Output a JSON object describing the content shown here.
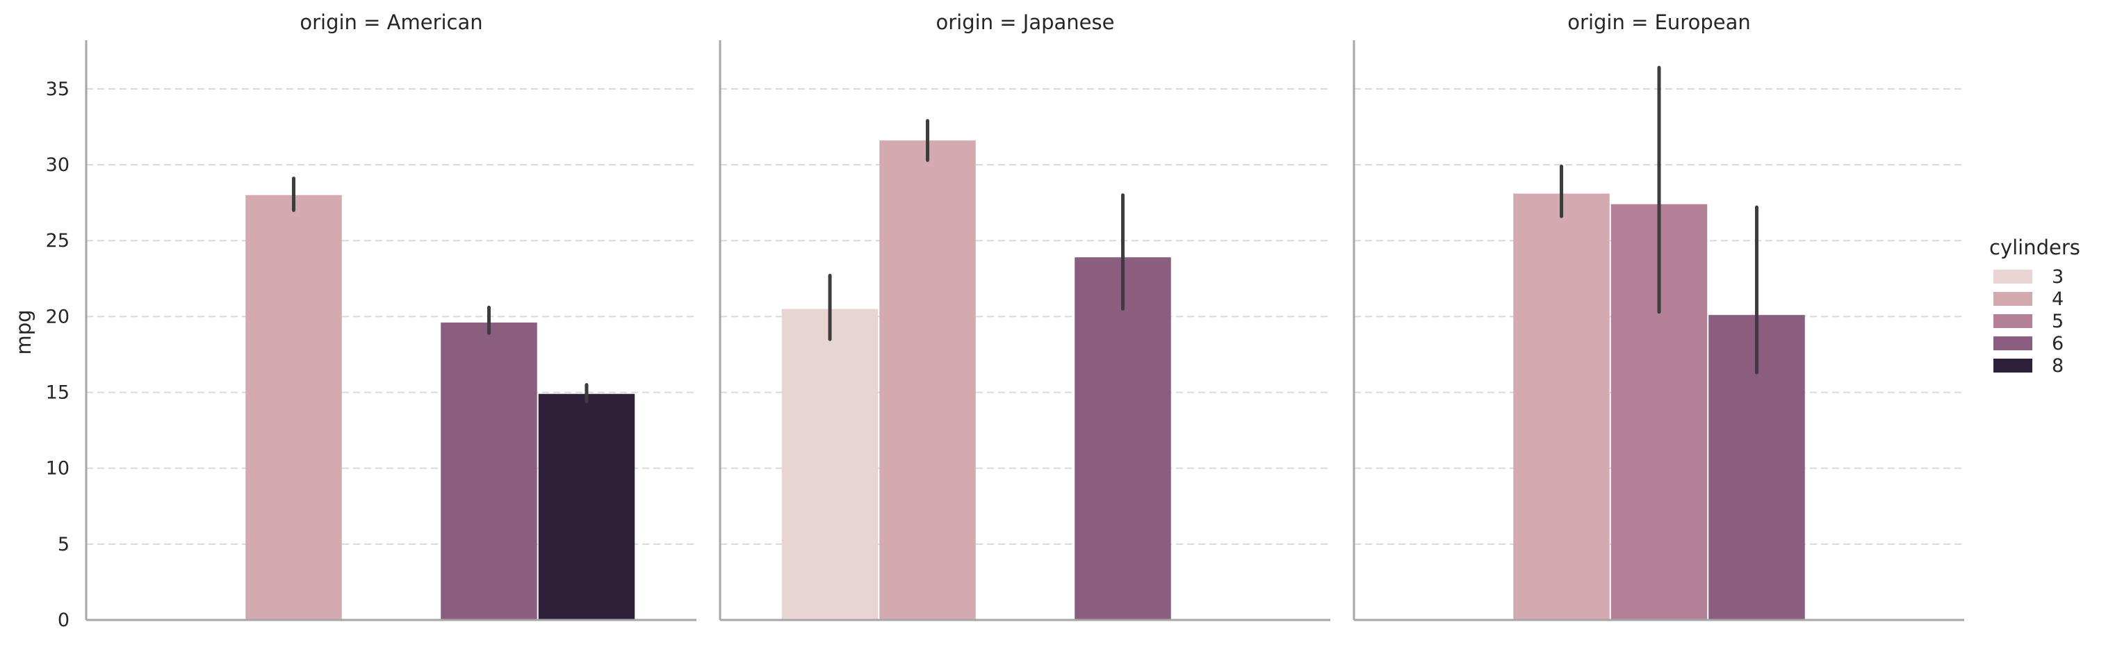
{
  "chart_data": {
    "type": "bar",
    "ylabel": "mpg",
    "ylim": [
      0,
      38.2
    ],
    "yticks": [
      0,
      5,
      10,
      15,
      20,
      25,
      30,
      35
    ],
    "grid": "y-dashed",
    "hue_label": "cylinders",
    "hue_levels": [
      "3",
      "4",
      "5",
      "6",
      "8"
    ],
    "colors": [
      "#e8d5d1",
      "#d4a9b0",
      "#b48097",
      "#8b5e80",
      "#2f2039"
    ],
    "error_bar_color": "#3d3d3d",
    "legend_position": "right",
    "panels": [
      {
        "title": "origin = American",
        "bars": [
          {
            "cylinders": "4",
            "mean": 28.0,
            "ci": [
              27.0,
              29.1
            ]
          },
          {
            "cylinders": "6",
            "mean": 19.6,
            "ci": [
              18.9,
              20.6
            ]
          },
          {
            "cylinders": "8",
            "mean": 14.9,
            "ci": [
              14.4,
              15.5
            ]
          }
        ]
      },
      {
        "title": "origin = Japanese",
        "bars": [
          {
            "cylinders": "3",
            "mean": 20.5,
            "ci": [
              18.5,
              22.7
            ]
          },
          {
            "cylinders": "4",
            "mean": 31.6,
            "ci": [
              30.3,
              32.9
            ]
          },
          {
            "cylinders": "6",
            "mean": 23.9,
            "ci": [
              20.5,
              28.0
            ]
          }
        ]
      },
      {
        "title": "origin = European",
        "bars": [
          {
            "cylinders": "4",
            "mean": 28.1,
            "ci": [
              26.6,
              29.9
            ]
          },
          {
            "cylinders": "5",
            "mean": 27.4,
            "ci": [
              20.3,
              36.4
            ]
          },
          {
            "cylinders": "6",
            "mean": 20.1,
            "ci": [
              16.3,
              27.2
            ]
          }
        ]
      }
    ]
  }
}
